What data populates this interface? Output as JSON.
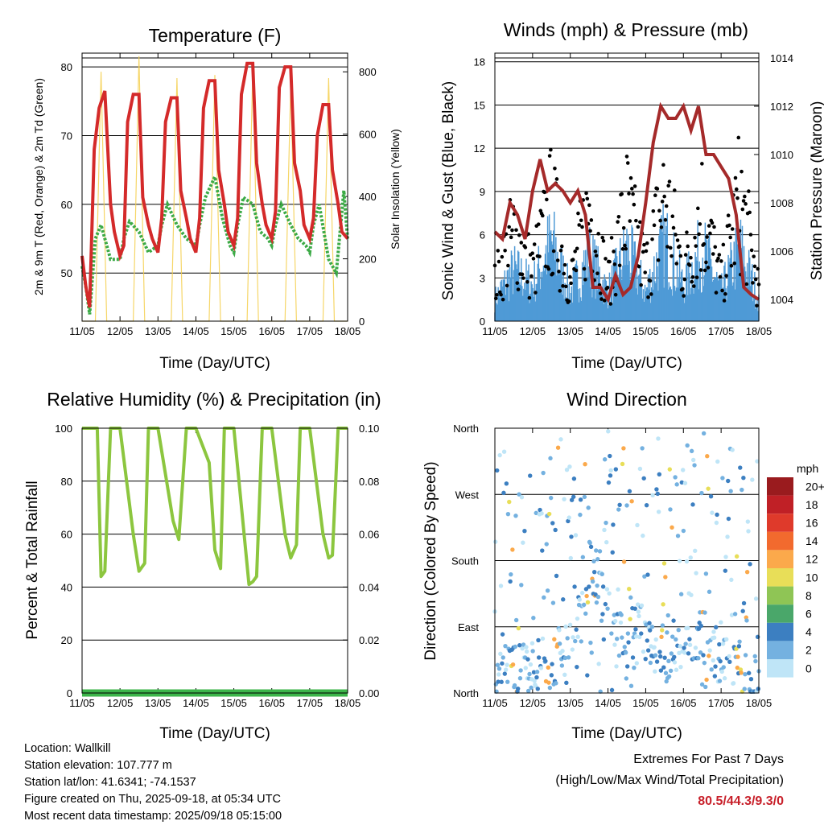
{
  "panels": {
    "temperature": {
      "title": "Temperature (F)",
      "xlabel": "Time (Day/UTC)",
      "ylabel_left": "2m & 9m T (Red, Orange) & 2m Td (Green)",
      "ylabel_right": "Solar Insolation (Yellow)"
    },
    "winds": {
      "title": "Winds (mph) & Pressure (mb)",
      "xlabel": "Time (Day/UTC)",
      "ylabel_left": "Sonic Wind & Gust (Blue, Black)",
      "ylabel_right": "Station Pressure (Maroon)"
    },
    "humidity": {
      "title": "Relative Humidity (%) & Precipitation (in)",
      "xlabel": "Time (Day/UTC)",
      "ylabel_left": "Percent & Total Rainfall"
    },
    "direction": {
      "title": "Wind Direction",
      "xlabel": "Time (Day/UTC)",
      "ylabel_left": "Direction (Colored By Speed)"
    }
  },
  "colorbar": {
    "unit": "mph",
    "labels": [
      "20+",
      "18",
      "16",
      "14",
      "12",
      "10",
      "8",
      "6",
      "4",
      "2",
      "0"
    ],
    "colors": [
      "#9a1b1e",
      "#c02026",
      "#df3a2b",
      "#f26a2e",
      "#fba94b",
      "#e8de58",
      "#8fc555",
      "#4aa76a",
      "#3c7fc1",
      "#74b1e0",
      "#bfe5f7"
    ]
  },
  "info": {
    "location": "Location: Wallkill",
    "elevation": "Station elevation: 107.777 m",
    "latlon": "Station lat/lon: 41.6341; -74.1537",
    "created": "Figure created on Thu, 2025-09-18, at 05:34 UTC",
    "recent": "Most recent data timestamp: 2025/09/18 05:15:00"
  },
  "extremes": {
    "title": "Extremes For Past 7 Days",
    "subtitle": "(High/Low/Max Wind/Total Precipitation)",
    "values": "80.5/44.3/9.3/0"
  },
  "chart_data": [
    {
      "type": "line",
      "title": "Temperature (F)",
      "xlabel": "Time (Day/UTC)",
      "ylabel": "2m & 9m T (Red, Orange) & 2m Td (Green)",
      "ylabel_right": "Solar Insolation (Yellow)",
      "x_ticks": [
        "11/05",
        "12/05",
        "13/05",
        "14/05",
        "15/05",
        "16/05",
        "17/05",
        "18/05"
      ],
      "ylim": [
        43,
        82
      ],
      "yticks": [
        50,
        60,
        70,
        80
      ],
      "ylim_right": [
        0,
        860
      ],
      "yticks_right": [
        0,
        200,
        400,
        600,
        800
      ],
      "grid": "horizontal",
      "series": [
        {
          "name": "2m T",
          "color": "#d42a2a",
          "x": [
            0,
            0.1,
            0.2,
            0.32,
            0.45,
            0.6,
            0.75,
            0.85,
            1.0,
            1.1,
            1.2,
            1.35,
            1.5,
            1.6,
            1.75,
            1.85,
            2.0,
            2.1,
            2.2,
            2.35,
            2.5,
            2.6,
            2.75,
            2.85,
            3.0,
            3.1,
            3.2,
            3.35,
            3.5,
            3.6,
            3.75,
            3.85,
            4.0,
            4.1,
            4.2,
            4.35,
            4.5,
            4.6,
            4.75,
            4.85,
            5.0,
            5.1,
            5.2,
            5.35,
            5.5,
            5.6,
            5.75,
            5.85,
            6.0,
            6.1,
            6.2,
            6.35,
            6.5,
            6.6,
            6.75,
            6.85,
            7.0
          ],
          "y": [
            52.5,
            48,
            45,
            68,
            74,
            76.5,
            60,
            56,
            52.5,
            54,
            72,
            76,
            76,
            61,
            57,
            55,
            53,
            58,
            72,
            75.5,
            75.5,
            62,
            58,
            55,
            53,
            58,
            74,
            78,
            78,
            65,
            60,
            56,
            54,
            58,
            76,
            80.5,
            80.5,
            66,
            60,
            57,
            55,
            59,
            77,
            80,
            80,
            66,
            62,
            57,
            55,
            58,
            70,
            74.5,
            74.5,
            65,
            60,
            56,
            55
          ]
        },
        {
          "name": "2m Td",
          "color": "#3caa46",
          "x": [
            0,
            0.1,
            0.2,
            0.35,
            0.5,
            0.75,
            1.0,
            1.1,
            1.25,
            1.5,
            1.75,
            2.0,
            2.1,
            2.25,
            2.5,
            2.75,
            3.0,
            3.1,
            3.25,
            3.5,
            3.7,
            3.9,
            4.0,
            4.1,
            4.25,
            4.5,
            4.7,
            4.9,
            5.0,
            5.1,
            5.25,
            5.5,
            5.7,
            5.9,
            6.0,
            6.1,
            6.25,
            6.5,
            6.7,
            6.9,
            7.0
          ],
          "y": [
            51,
            48,
            44,
            55,
            57,
            52,
            52,
            55,
            57.5,
            56,
            53,
            54,
            57,
            60,
            57,
            55,
            54,
            57,
            61,
            64,
            58,
            54,
            53,
            57,
            61,
            60,
            56,
            55,
            54,
            57,
            60,
            57,
            55,
            54,
            53,
            57,
            60,
            52,
            50,
            62,
            55
          ]
        },
        {
          "name": "Solar Insolation",
          "color": "#f5cf4e",
          "axis": "right",
          "x": [
            0,
            0.35,
            0.5,
            0.65,
            1.0,
            1.35,
            1.5,
            1.65,
            2.0,
            2.35,
            2.5,
            2.65,
            3.0,
            3.35,
            3.5,
            3.65,
            4.0,
            4.35,
            4.5,
            4.65,
            5.0,
            5.35,
            5.5,
            5.65,
            6.0,
            6.35,
            6.5,
            6.65,
            7.0
          ],
          "y": [
            0,
            0,
            800,
            0,
            0,
            0,
            850,
            0,
            0,
            0,
            780,
            0,
            0,
            0,
            790,
            0,
            0,
            0,
            810,
            0,
            0,
            0,
            760,
            0,
            0,
            0,
            780,
            0,
            0
          ]
        }
      ]
    },
    {
      "type": "scatter",
      "title": "Winds (mph) & Pressure (mb)",
      "xlabel": "Time (Day/UTC)",
      "ylabel": "Sonic Wind & Gust (Blue, Black)",
      "ylabel_right": "Station Pressure (Maroon)",
      "x_ticks": [
        "11/05",
        "12/05",
        "13/05",
        "14/05",
        "15/05",
        "16/05",
        "17/05",
        "18/05"
      ],
      "ylim": [
        0,
        18.6
      ],
      "yticks": [
        0,
        3,
        6,
        9,
        12,
        15,
        18
      ],
      "ylim_right": [
        1003.1,
        1014.2
      ],
      "yticks_right": [
        1004,
        1006,
        1008,
        1010,
        1012,
        1014
      ],
      "grid": "horizontal",
      "series": [
        {
          "name": "Sonic Wind",
          "color": "#4f9ad6",
          "x": [
            0,
            0.5,
            1.0,
            1.5,
            2.0,
            2.5,
            3.0,
            3.5,
            4.0,
            4.5,
            5.0,
            5.5,
            6.0,
            6.5,
            7.0
          ],
          "y": [
            1.5,
            3.5,
            2.5,
            5.5,
            2.0,
            4.5,
            2.0,
            5.0,
            2.0,
            5.5,
            2.5,
            5.0,
            2.0,
            5.0,
            1.5
          ]
        },
        {
          "name": "Gust",
          "color": "#000000",
          "x": [
            0,
            0.5,
            1.0,
            1.5,
            2.0,
            2.5,
            3.0,
            3.5,
            4.0,
            4.5,
            5.0,
            5.5,
            6.0,
            6.5,
            7.0
          ],
          "y": [
            3,
            7,
            4,
            9,
            3,
            9,
            3,
            9,
            4,
            10,
            4,
            9,
            3,
            10,
            2.5
          ]
        },
        {
          "name": "Station Pressure",
          "color": "#a52a2a",
          "axis": "right",
          "x": [
            0,
            0.2,
            0.4,
            0.6,
            0.8,
            1.0,
            1.2,
            1.4,
            1.6,
            1.8,
            2.0,
            2.2,
            2.4,
            2.6,
            2.8,
            3.0,
            3.2,
            3.4,
            3.6,
            3.8,
            4.0,
            4.2,
            4.4,
            4.6,
            4.8,
            5.0,
            5.2,
            5.4,
            5.6,
            5.8,
            6.0,
            6.2,
            6.4,
            6.6,
            6.8,
            7.0
          ],
          "y": [
            1006.8,
            1006.5,
            1008.0,
            1007.5,
            1006.5,
            1008.5,
            1009.8,
            1008.5,
            1008.8,
            1008.5,
            1008.0,
            1008.5,
            1007.5,
            1004.5,
            1004.5,
            1004.0,
            1005.0,
            1004.2,
            1004.5,
            1005.8,
            1008.0,
            1010.5,
            1012.0,
            1011.5,
            1011.5,
            1012.0,
            1011.0,
            1012.0,
            1010.0,
            1010.0,
            1009.5,
            1009.0,
            1007.5,
            1004.5,
            1004.2,
            1004.0
          ]
        }
      ]
    },
    {
      "type": "line",
      "title": "Relative Humidity (%) & Precipitation (in)",
      "xlabel": "Time (Day/UTC)",
      "ylabel": "Percent & Total Rainfall",
      "x_ticks": [
        "11/05",
        "12/05",
        "13/05",
        "14/05",
        "15/05",
        "16/05",
        "17/05",
        "18/05"
      ],
      "ylim": [
        0,
        100
      ],
      "yticks": [
        0,
        20,
        40,
        60,
        80,
        100
      ],
      "ylim_right": [
        0,
        0.1
      ],
      "yticks_right": [
        0.0,
        0.02,
        0.04,
        0.06,
        0.08,
        0.1
      ],
      "grid": "horizontal",
      "series": [
        {
          "name": "Relative Humidity",
          "color": "#8cc63f",
          "x": [
            0,
            0.4,
            0.5,
            0.6,
            0.75,
            1.0,
            1.35,
            1.5,
            1.65,
            1.75,
            2.0,
            2.4,
            2.55,
            2.75,
            3.0,
            3.35,
            3.5,
            3.65,
            3.75,
            4.0,
            4.4,
            4.5,
            4.6,
            4.75,
            5.0,
            5.35,
            5.5,
            5.65,
            5.75,
            6.0,
            6.35,
            6.5,
            6.6,
            6.75,
            7.0
          ],
          "y": [
            100,
            100,
            44,
            46,
            100,
            100,
            60,
            46,
            49,
            100,
            100,
            65,
            58,
            100,
            100,
            87,
            54,
            47,
            100,
            100,
            41,
            42,
            44,
            100,
            100,
            60,
            51,
            56,
            100,
            100,
            60,
            51,
            52,
            100,
            100
          ]
        },
        {
          "name": "Precipitation",
          "color": "#3cb54a",
          "axis": "right",
          "x": [
            0,
            7.0
          ],
          "y": [
            0,
            0
          ]
        }
      ]
    },
    {
      "type": "scatter",
      "title": "Wind Direction",
      "xlabel": "Time (Day/UTC)",
      "ylabel": "Direction (Colored By Speed)",
      "x_ticks": [
        "11/05",
        "12/05",
        "13/05",
        "14/05",
        "15/05",
        "16/05",
        "17/05",
        "18/05"
      ],
      "yticks": [
        "North",
        "East",
        "South",
        "West",
        "North"
      ],
      "ylim": [
        0,
        360
      ],
      "colorbar": {
        "unit": "mph",
        "min": 0,
        "max": 20
      },
      "series": [
        {
          "name": "Wind Direction",
          "x": [
            0.4,
            0.5,
            0.6,
            1.4,
            1.5,
            1.6,
            2.4,
            2.5,
            2.6,
            3.4,
            3.5,
            3.6,
            4.4,
            4.5,
            4.6,
            5.4,
            5.5,
            5.6,
            6.4,
            6.5,
            6.6
          ],
          "y": [
            30,
            40,
            25,
            45,
            35,
            50,
            110,
            180,
            150,
            80,
            50,
            100,
            60,
            60,
            40,
            80,
            120,
            60,
            30,
            40,
            20
          ]
        }
      ]
    }
  ]
}
